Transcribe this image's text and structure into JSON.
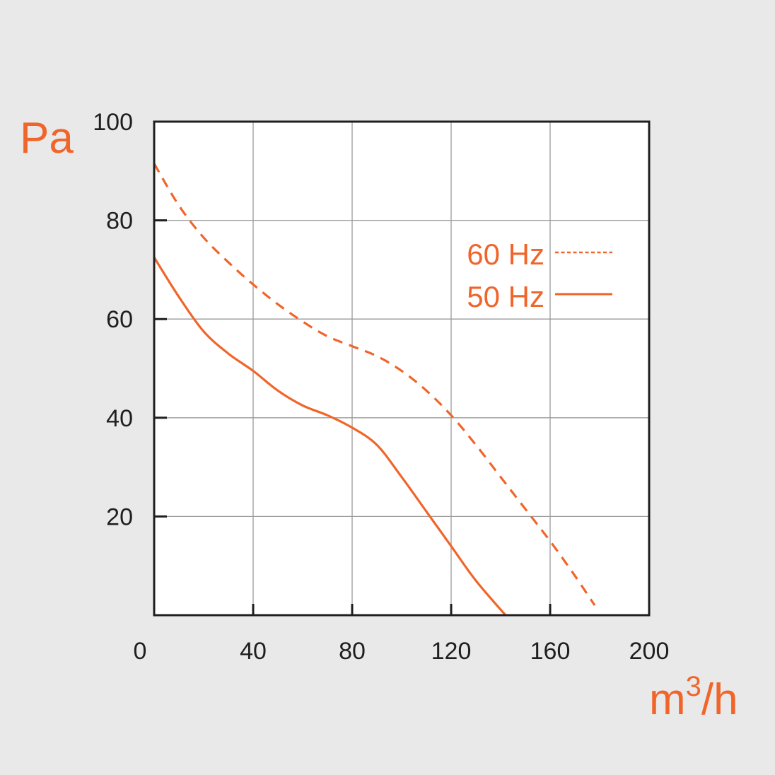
{
  "colors": {
    "background": "#e9e9e9",
    "plot_background": "#ffffff",
    "grid": "#9a9a9a",
    "frame": "#1f1f1f",
    "accent": "#f0652a",
    "tick_text": "#1f1f1f"
  },
  "chart_data": {
    "type": "line",
    "title": "",
    "xlabel": {
      "base": "m",
      "sup": "3",
      "rest": "/h"
    },
    "ylabel": "Pa",
    "xlim": [
      0,
      200
    ],
    "ylim": [
      0,
      100
    ],
    "x_ticks": [
      40,
      80,
      120,
      160,
      200
    ],
    "x_origin_label": "0",
    "y_ticks": [
      20,
      40,
      60,
      80,
      100
    ],
    "grid": true,
    "legend_position": "top-right",
    "series": [
      {
        "name": "60 Hz",
        "style": "dashed",
        "x": [
          0,
          10,
          20,
          30,
          40,
          50,
          60,
          70,
          80,
          90,
          100,
          110,
          120,
          130,
          140,
          150,
          160,
          170,
          178
        ],
        "y": [
          91.5,
          83,
          76.5,
          71.5,
          67,
          63,
          59.5,
          56.5,
          54.5,
          52.5,
          49.5,
          45.5,
          40.5,
          34.5,
          28,
          21.5,
          15,
          8,
          2
        ]
      },
      {
        "name": "50 Hz",
        "style": "solid",
        "x": [
          0,
          10,
          20,
          30,
          40,
          50,
          60,
          70,
          80,
          90,
          100,
          110,
          120,
          130,
          142
        ],
        "y": [
          72.5,
          64.5,
          57.5,
          53,
          49.5,
          45.5,
          42.5,
          40.5,
          38,
          34.5,
          28,
          21,
          14,
          7,
          0
        ]
      }
    ]
  }
}
